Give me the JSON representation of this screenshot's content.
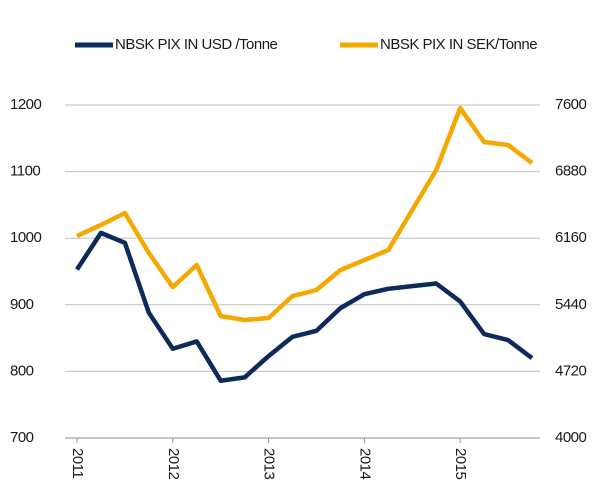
{
  "chart_data": {
    "type": "line",
    "x": [
      2011,
      2011.25,
      2011.5,
      2011.75,
      2012,
      2012.25,
      2012.5,
      2012.75,
      2013,
      2013.25,
      2013.5,
      2013.75,
      2014,
      2014.25,
      2014.5,
      2014.75,
      2015,
      2015.25,
      2015.5,
      2015.75
    ],
    "xlim": [
      2011,
      2015.75
    ],
    "xticks": [
      2011,
      2012,
      2013,
      2014,
      2015
    ],
    "ylim": [
      700,
      1200
    ],
    "yticks": [
      700,
      800,
      900,
      1000,
      1100,
      1200
    ],
    "y2lim": [
      4000,
      7600
    ],
    "y2ticks": [
      4000,
      4720,
      5440,
      6160,
      6880,
      7600
    ],
    "grid": true,
    "legend": "top",
    "series": [
      {
        "name": "NBSK PIX IN USD /Tonne",
        "color": "#0d2a5a",
        "values": [
          953,
          1008,
          993,
          888,
          834,
          845,
          786,
          791,
          823,
          852,
          861,
          895,
          916,
          924,
          928,
          932,
          905,
          856,
          847,
          820
        ]
      },
      {
        "name": "NBSK PIX IN SEK/Tonne",
        "color": "#f5a800",
        "axis": "y2",
        "values": [
          6184,
          6303,
          6432,
          6000,
          5632,
          5870,
          5319,
          5276,
          5297,
          5535,
          5600,
          5816,
          5924,
          6032,
          6465,
          6897,
          7567,
          7200,
          7168,
          6973
        ]
      }
    ]
  }
}
